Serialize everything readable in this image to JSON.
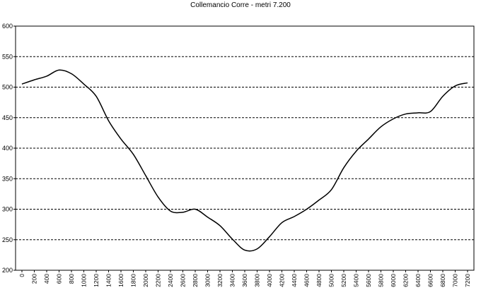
{
  "chart_data": {
    "type": "line",
    "title": "Collemancio Corre - metri 7.200",
    "xlabel": "",
    "ylabel": "",
    "ylim": [
      200,
      600
    ],
    "yticks": [
      200,
      250,
      300,
      350,
      400,
      450,
      500,
      550,
      600
    ],
    "xlim": [
      0,
      7200
    ],
    "xticks": [
      0,
      200,
      400,
      600,
      800,
      1000,
      1200,
      1400,
      1600,
      1800,
      2000,
      2200,
      2400,
      2600,
      2800,
      3000,
      3200,
      3400,
      3600,
      3800,
      4000,
      4200,
      4400,
      4600,
      4800,
      5000,
      5200,
      5400,
      5600,
      5800,
      6000,
      6200,
      6400,
      6600,
      6800,
      7000,
      7200
    ],
    "grid": "horizontal-dashed",
    "series": [
      {
        "x": [
          0,
          200,
          400,
          600,
          800,
          1000,
          1200,
          1400,
          1600,
          1800,
          2000,
          2200,
          2400,
          2600,
          2800,
          3000,
          3200,
          3400,
          3600,
          3800,
          4000,
          4200,
          4400,
          4600,
          4800,
          5000,
          5200,
          5400,
          5600,
          5800,
          6000,
          6200,
          6400,
          6600,
          6800,
          7000,
          7200
        ],
        "values": [
          505,
          512,
          518,
          528,
          522,
          505,
          485,
          445,
          415,
          390,
          355,
          320,
          297,
          295,
          300,
          287,
          273,
          251,
          233,
          235,
          255,
          278,
          288,
          300,
          315,
          332,
          368,
          395,
          415,
          435,
          448,
          456,
          458,
          460,
          485,
          502,
          507
        ]
      }
    ]
  }
}
